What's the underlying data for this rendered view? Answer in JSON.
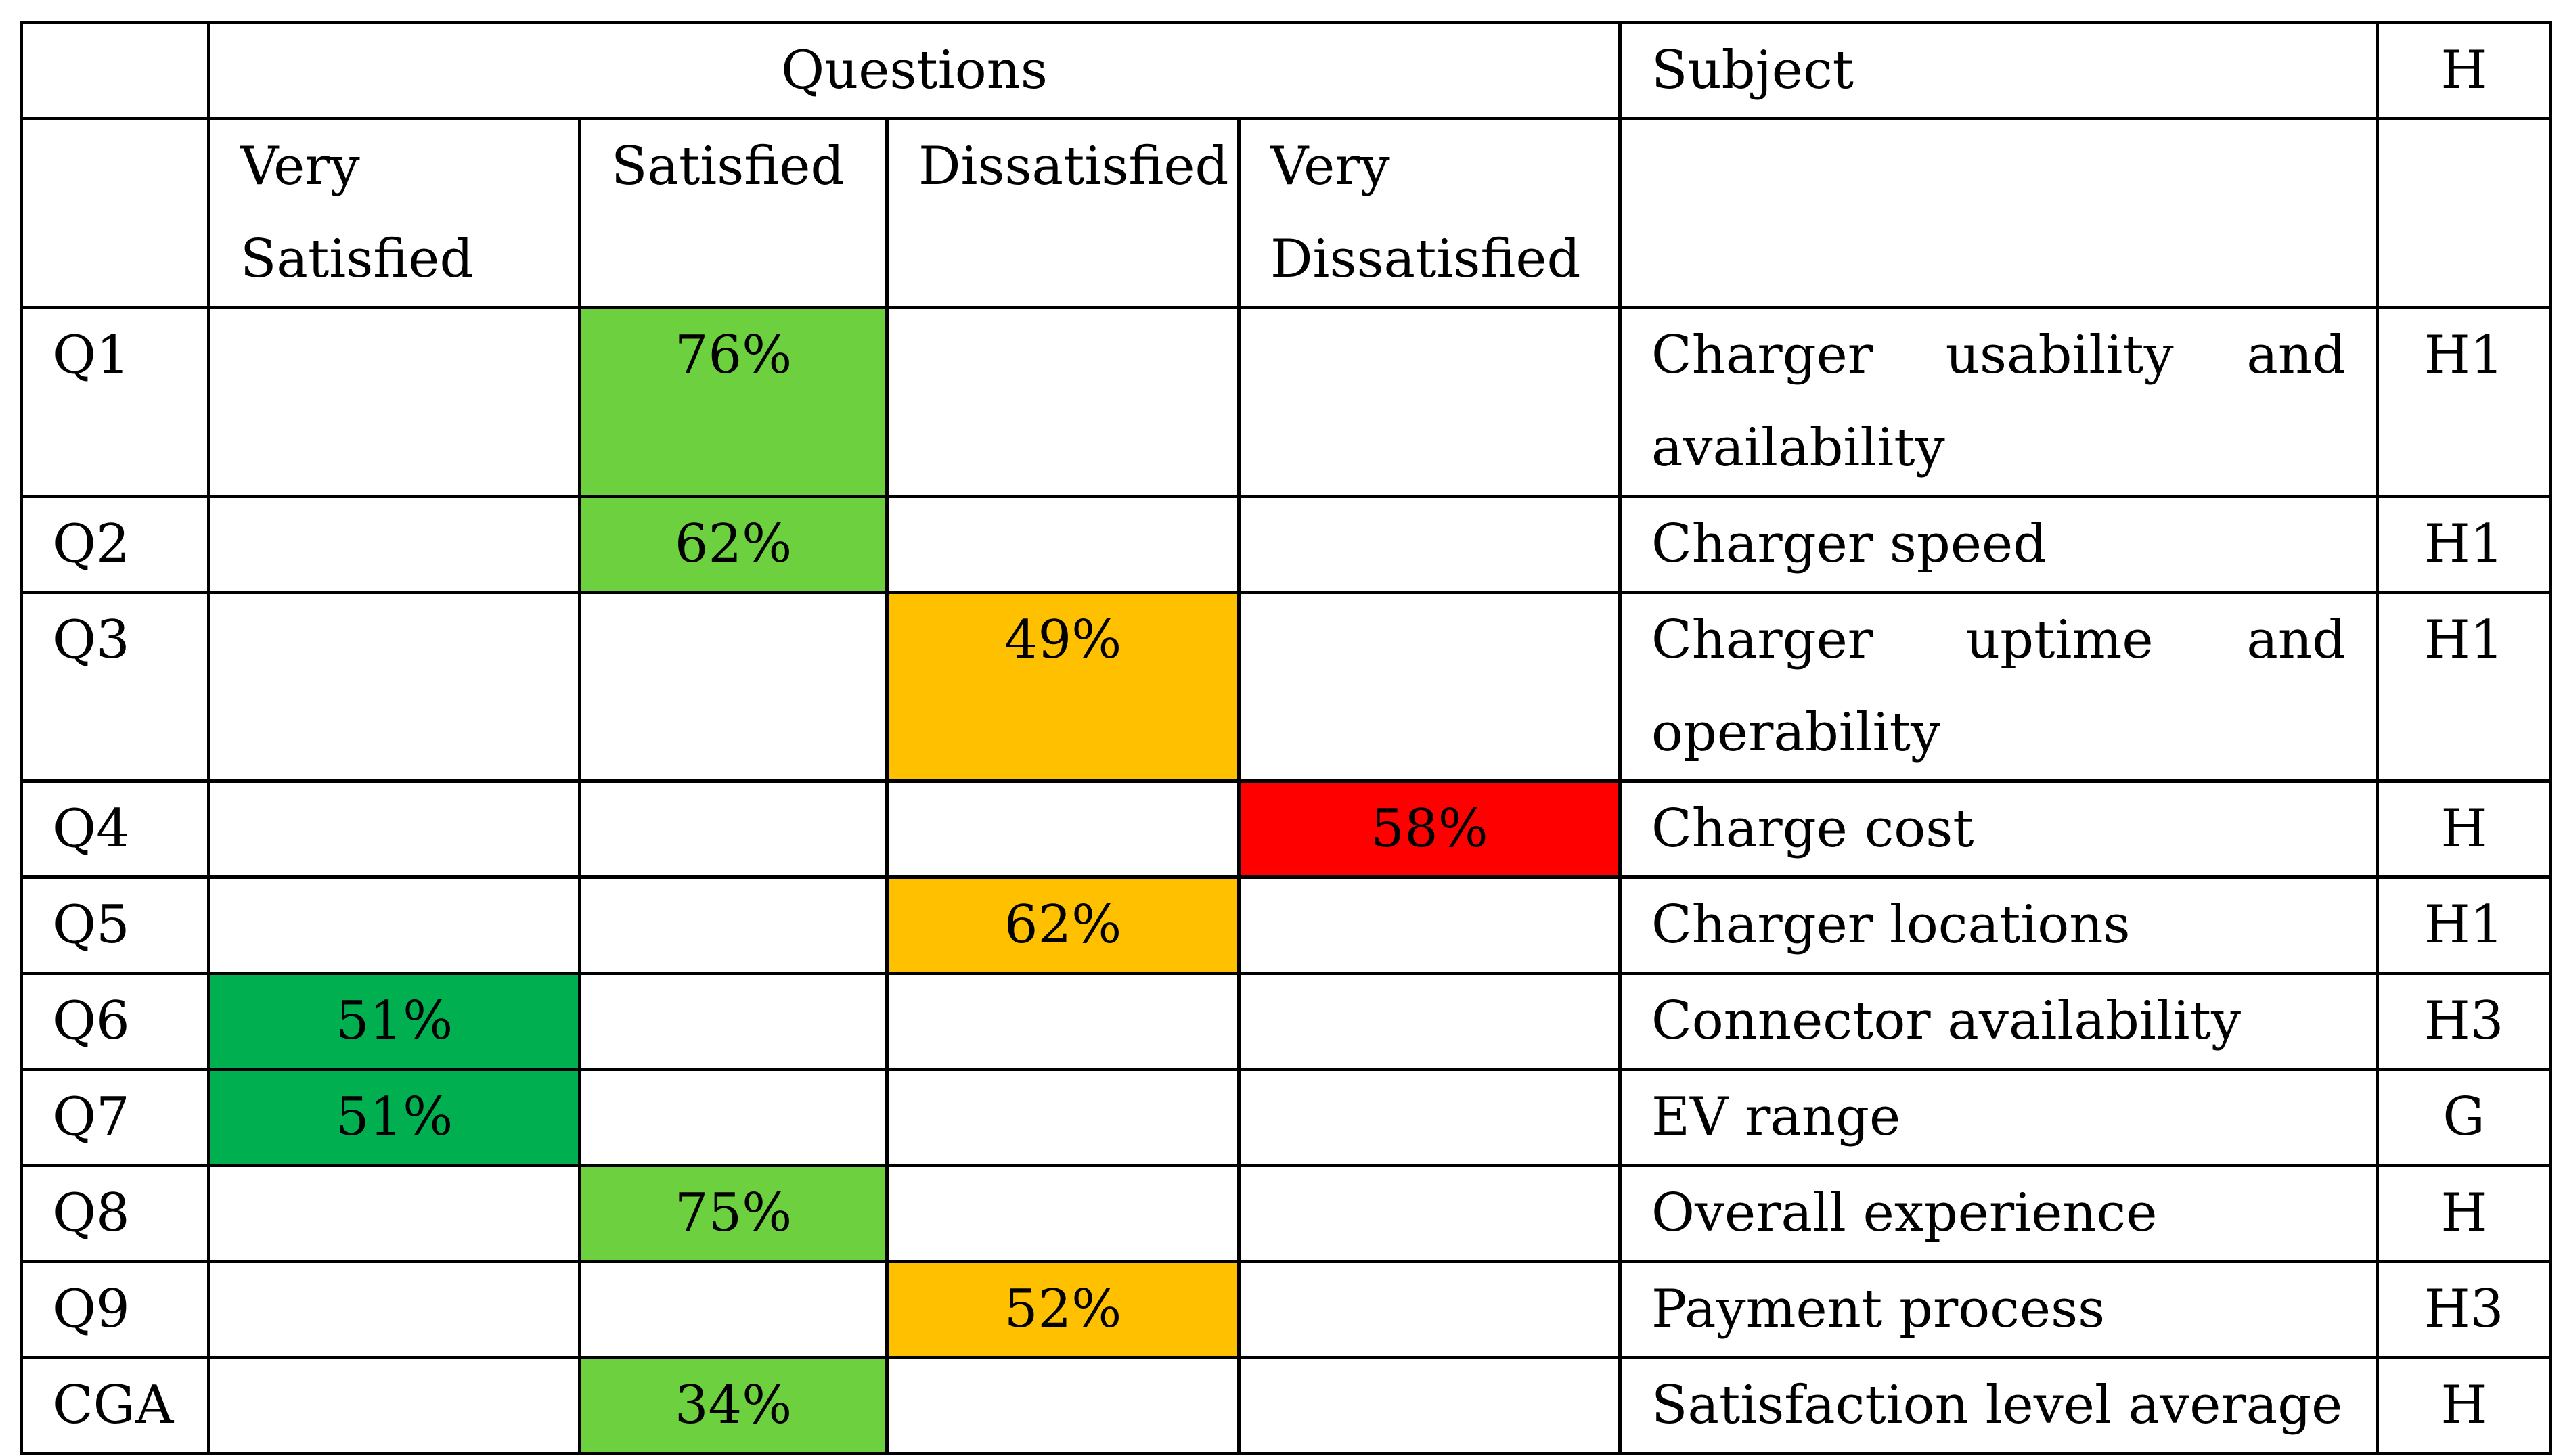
{
  "header": {
    "questions": "Questions",
    "subject": "Subject",
    "h": "H"
  },
  "subheader": {
    "very_satisfied": "Very Satisfied",
    "satisfied": "Satisfied",
    "dissatisfied": "Dissatisfied",
    "very_dissatisfied": "Very Dissatisfied"
  },
  "rows": [
    {
      "id": "Q1",
      "very_satisfied": "",
      "satisfied": "76%",
      "dissatisfied": "",
      "very_dissatisfied": "",
      "subject": "Charger usability and availability",
      "h": "H1"
    },
    {
      "id": "Q2",
      "very_satisfied": "",
      "satisfied": "62%",
      "dissatisfied": "",
      "very_dissatisfied": "",
      "subject": "Charger speed",
      "h": "H1"
    },
    {
      "id": "Q3",
      "very_satisfied": "",
      "satisfied": "",
      "dissatisfied": "49%",
      "very_dissatisfied": "",
      "subject": "Charger uptime and operability",
      "h": "H1"
    },
    {
      "id": "Q4",
      "very_satisfied": "",
      "satisfied": "",
      "dissatisfied": "",
      "very_dissatisfied": "58%",
      "subject": "Charge cost",
      "h": "H"
    },
    {
      "id": "Q5",
      "very_satisfied": "",
      "satisfied": "",
      "dissatisfied": "62%",
      "very_dissatisfied": "",
      "subject": "Charger locations",
      "h": "H1"
    },
    {
      "id": "Q6",
      "very_satisfied": "51%",
      "satisfied": "",
      "dissatisfied": "",
      "very_dissatisfied": "",
      "subject": "Connector availability",
      "h": "H3"
    },
    {
      "id": "Q7",
      "very_satisfied": "51%",
      "satisfied": "",
      "dissatisfied": "",
      "very_dissatisfied": "",
      "subject": "EV range",
      "h": "G"
    },
    {
      "id": "Q8",
      "very_satisfied": "",
      "satisfied": "75%",
      "dissatisfied": "",
      "very_dissatisfied": "",
      "subject": "Overall experience",
      "h": "H"
    },
    {
      "id": "Q9",
      "very_satisfied": "",
      "satisfied": "",
      "dissatisfied": "52%",
      "very_dissatisfied": "",
      "subject": "Payment process",
      "h": "H3"
    },
    {
      "id": "CGA",
      "very_satisfied": "",
      "satisfied": "34%",
      "dissatisfied": "",
      "very_dissatisfied": "",
      "subject": "Satisfaction level average",
      "h": "H"
    }
  ],
  "colors": {
    "very_satisfied": "#00b050",
    "satisfied": "#6dd03f",
    "dissatisfied": "#ffc000",
    "very_dissatisfied": "#ff0000",
    "border": "#000000"
  }
}
